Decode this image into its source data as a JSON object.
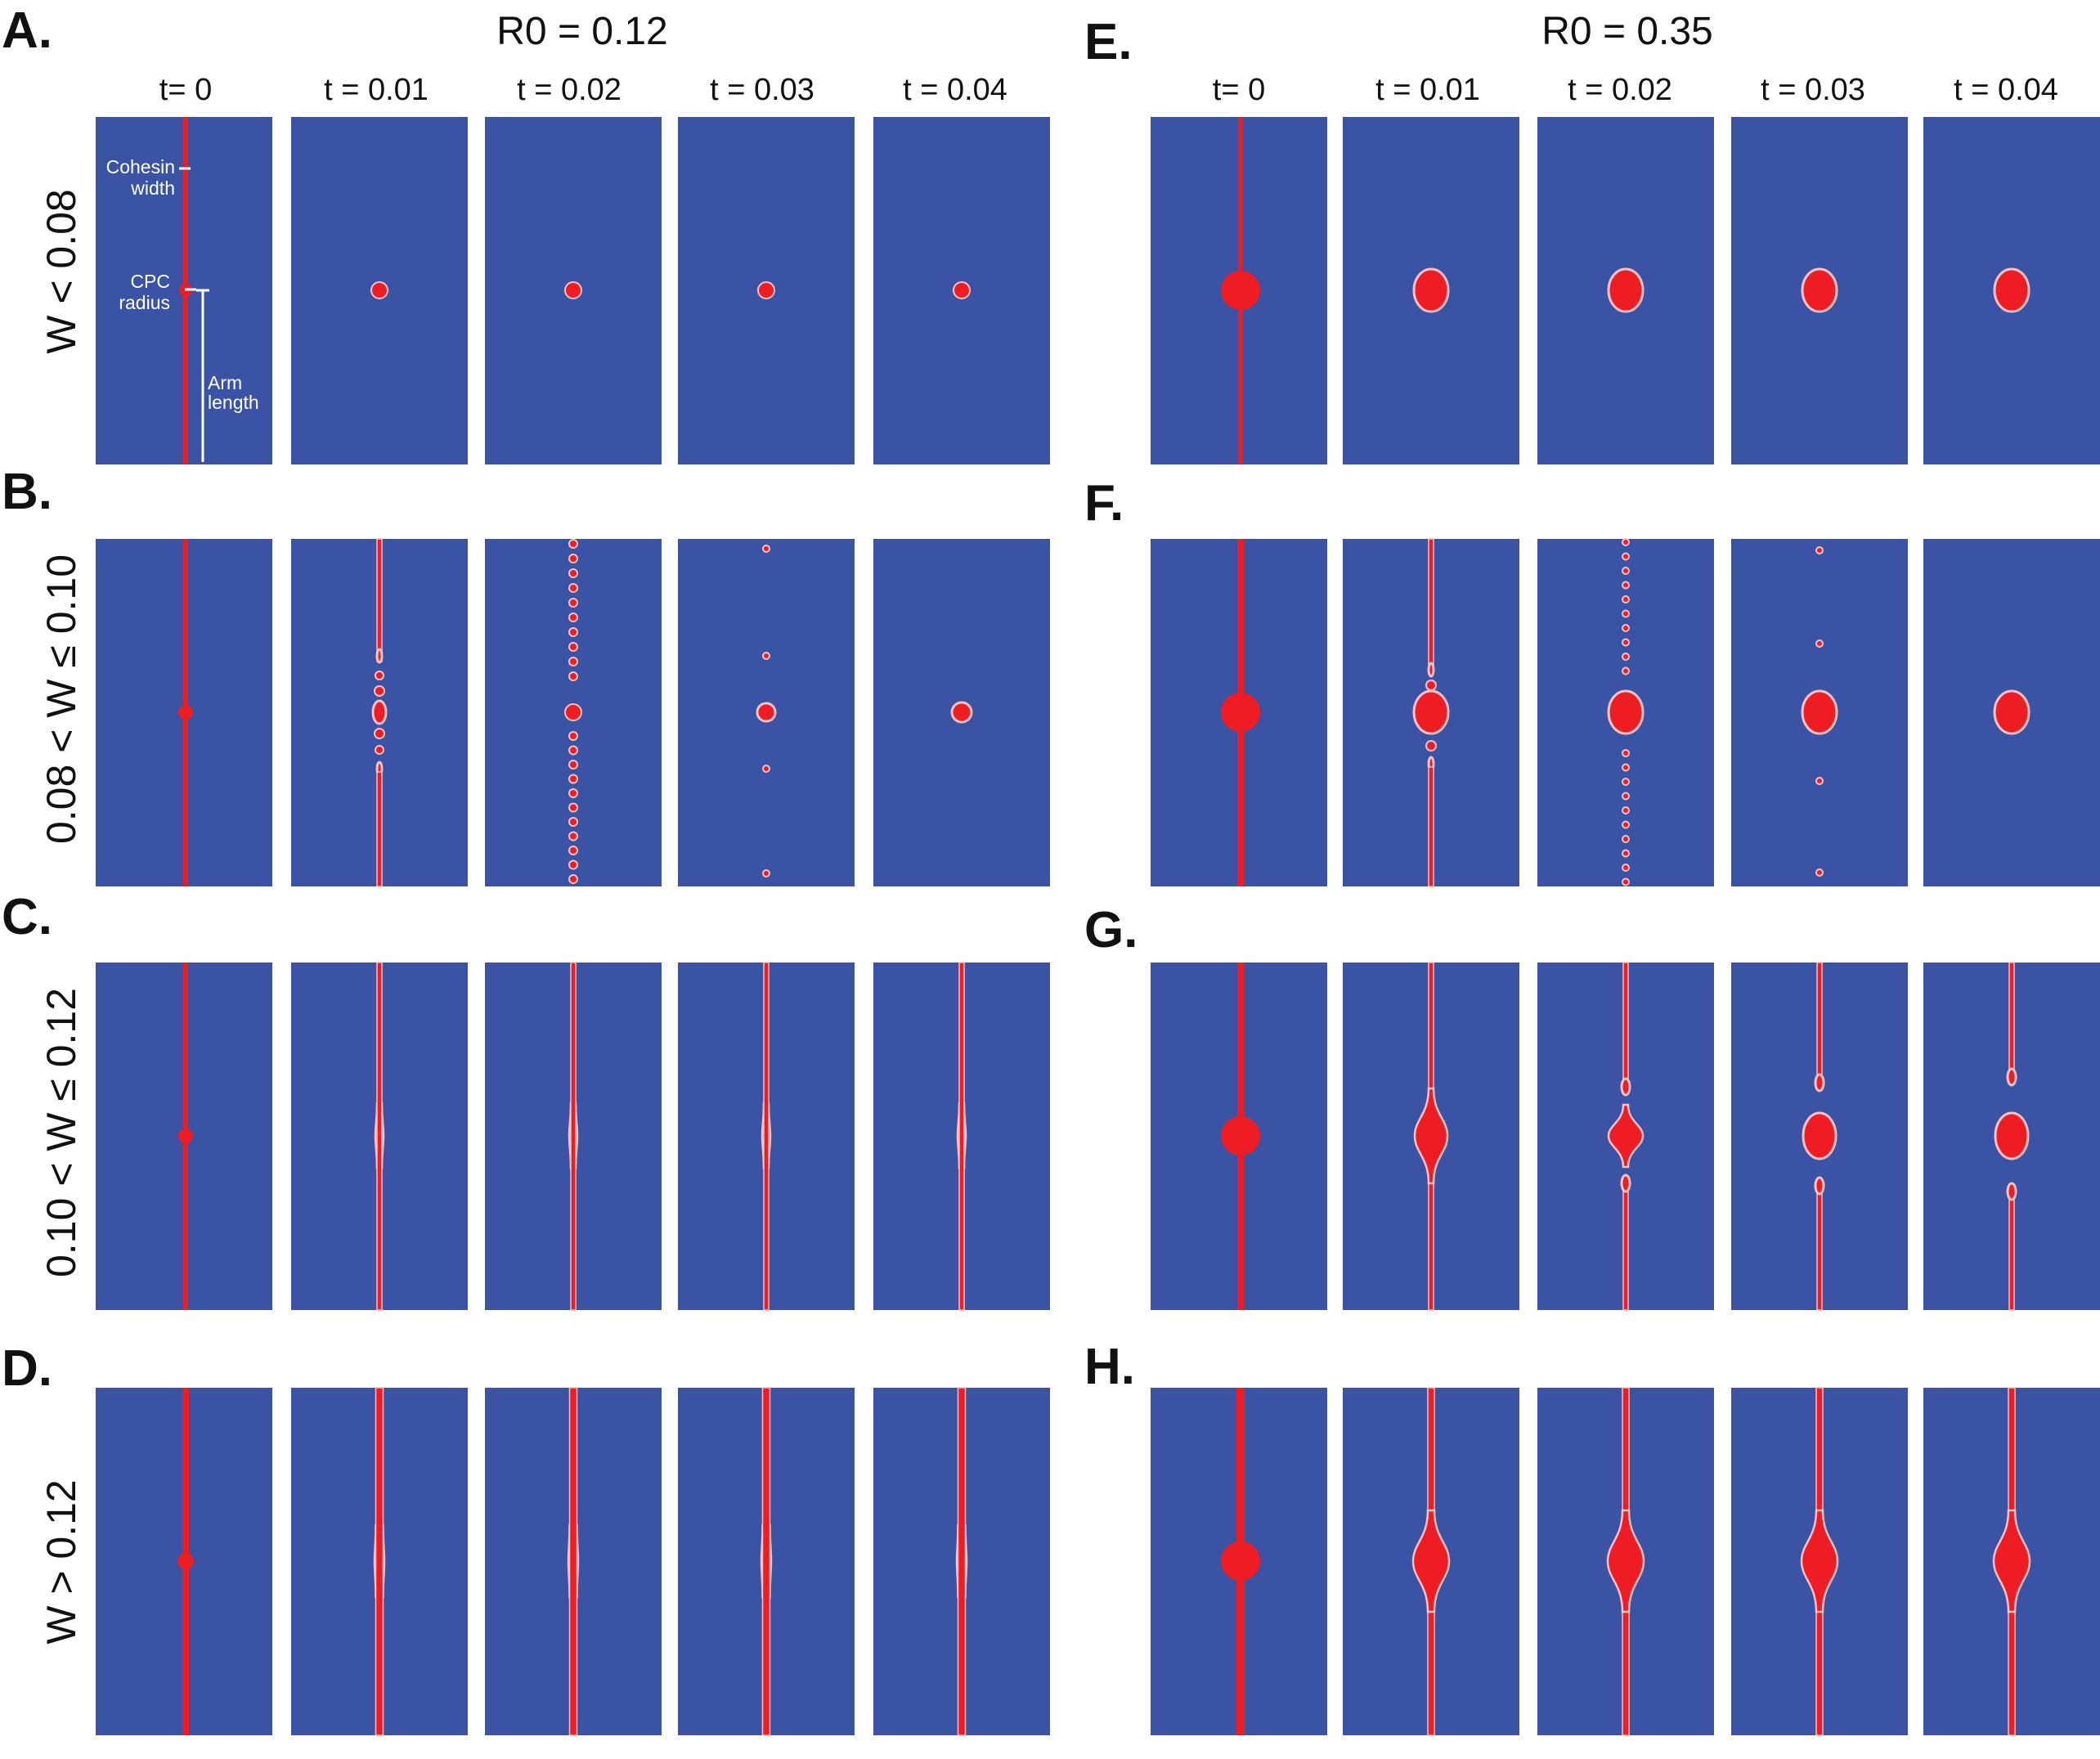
{
  "colors": {
    "background": "#3a53a4",
    "condensate": "#ee1d23",
    "edge": "#f4c2c4",
    "annotation": "#ffffff"
  },
  "left": {
    "title": "R0 = 0.12",
    "times": [
      "t= 0",
      "t = 0.01",
      "t = 0.02",
      "t = 0.03",
      "t = 0.04"
    ]
  },
  "right": {
    "title": "R0 = 0.35",
    "times": [
      "t= 0",
      "t = 0.01",
      "t = 0.02",
      "t = 0.03",
      "t = 0.04"
    ]
  },
  "rows": [
    {
      "label": "W < 0.08",
      "left_panel": "A.",
      "right_panel": "E."
    },
    {
      "label": "0.08 < W ≤ 0.10",
      "left_panel": "B.",
      "right_panel": "F."
    },
    {
      "label": "0.10 < W ≤ 0.12",
      "left_panel": "C.",
      "right_panel": "G."
    },
    {
      "label": "W > 0.12",
      "left_panel": "D.",
      "right_panel": "H."
    }
  ],
  "annotations": {
    "cohesin_line1": "Cohesin",
    "cohesin_line2": "width",
    "cpc_line1": "CPC",
    "cpc_line2": "radius",
    "arm_line1": "Arm",
    "arm_line2": "length"
  }
}
